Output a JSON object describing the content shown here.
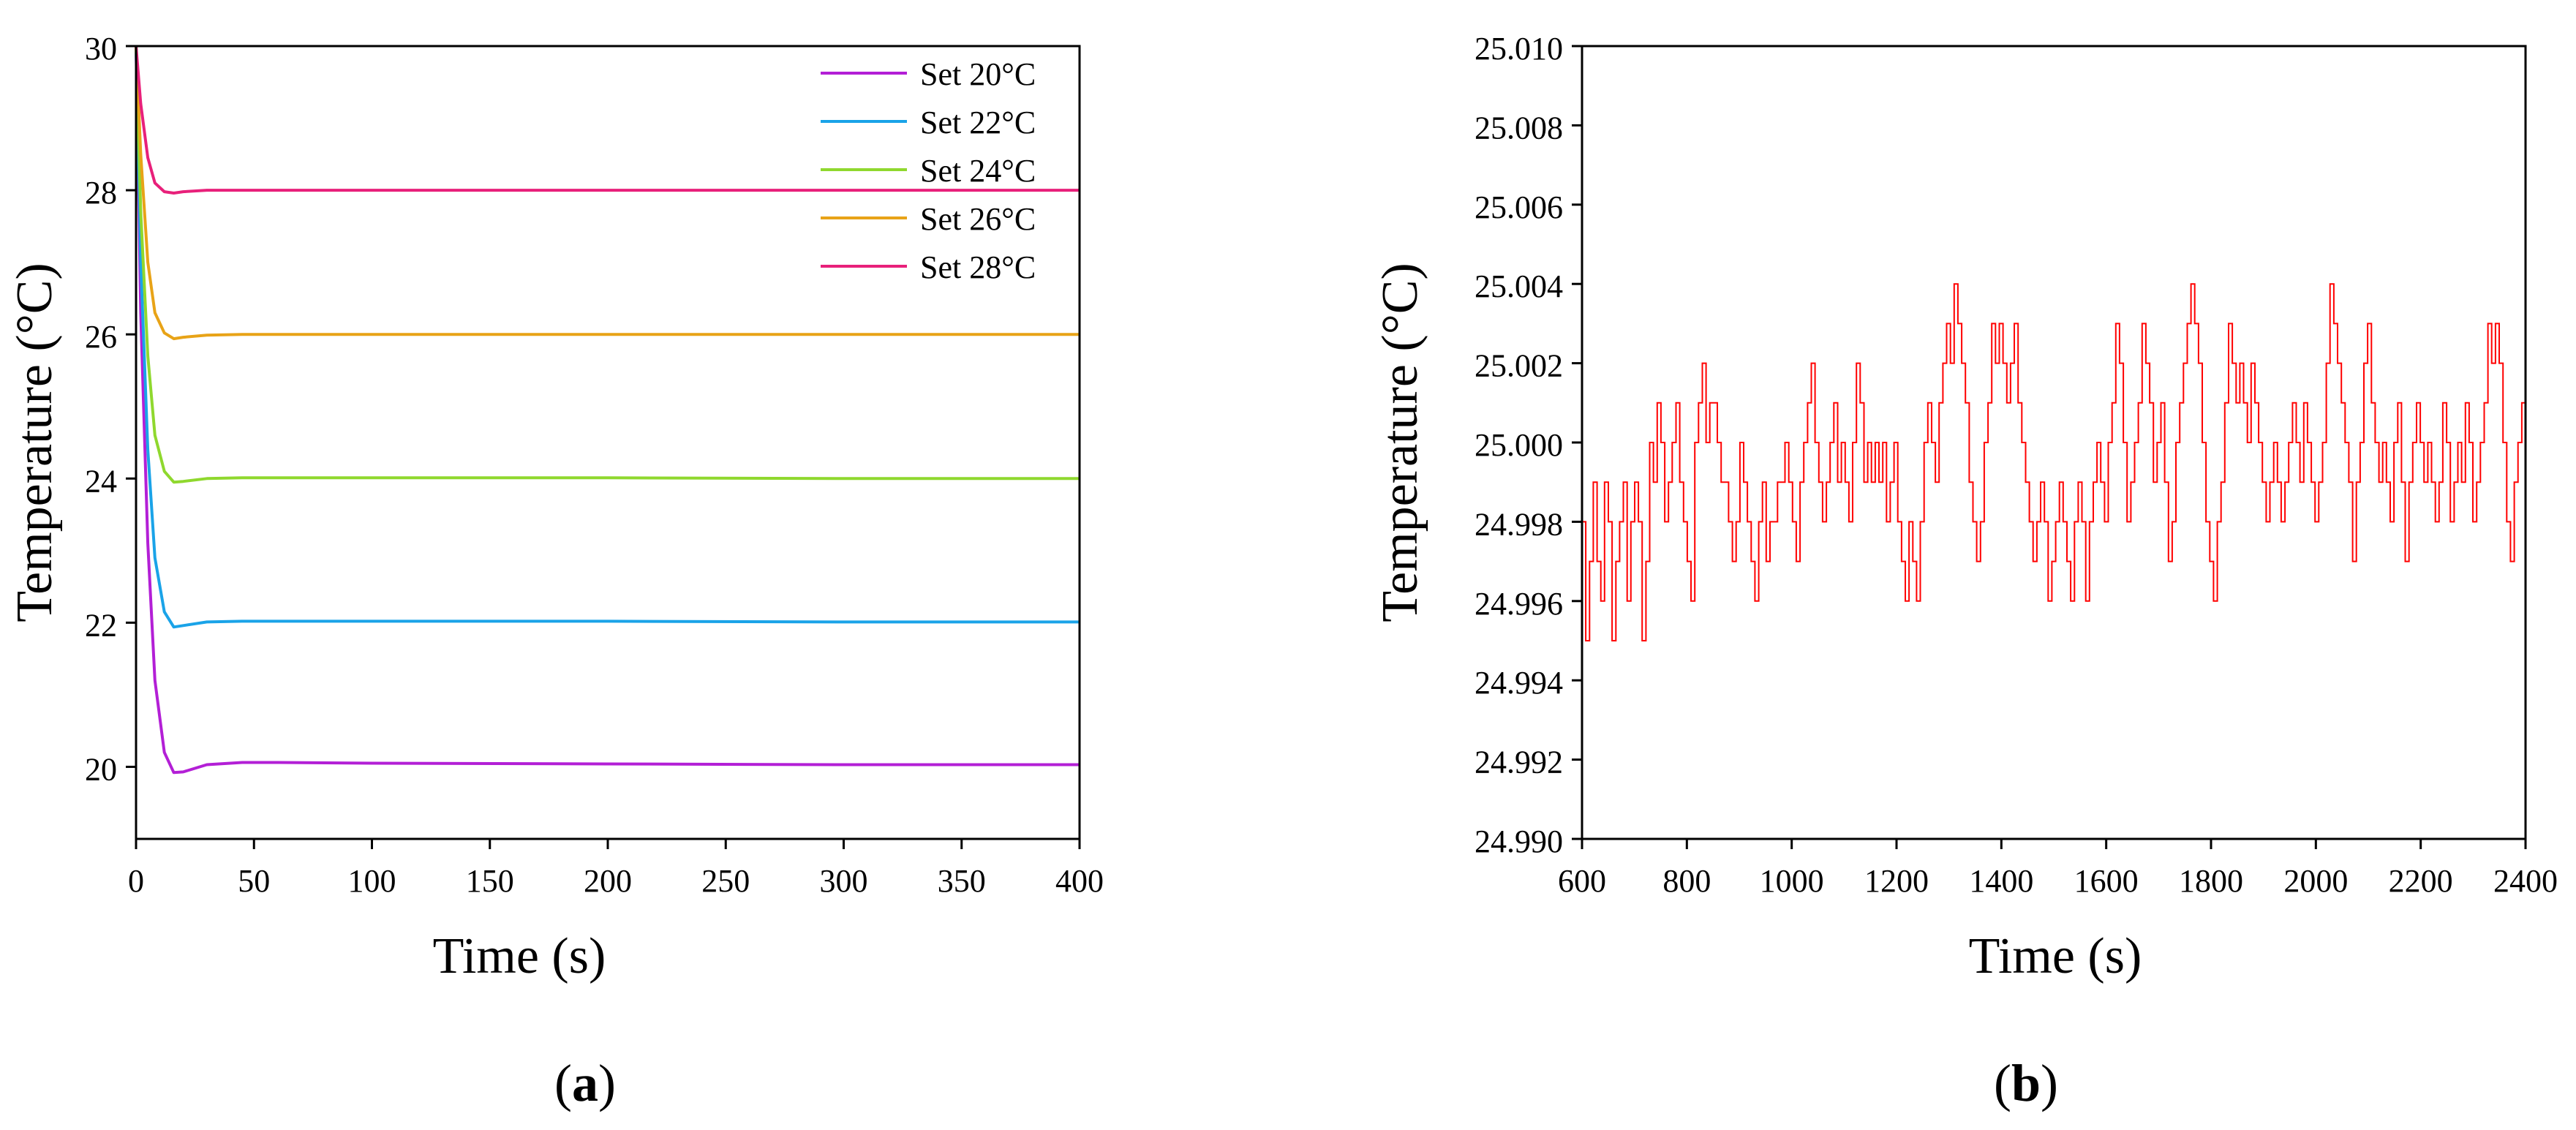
{
  "panels": [
    {
      "label_open": "(",
      "label_letter": "a",
      "label_close": ")"
    },
    {
      "label_open": "(",
      "label_letter": "b",
      "label_close": ")"
    }
  ],
  "chart_data": [
    {
      "type": "line",
      "title": "",
      "xlabel": "Time (s)",
      "ylabel": "Temperature (°C)",
      "xlim": [
        0,
        400
      ],
      "ylim": [
        19,
        30
      ],
      "x_ticks": [
        0,
        50,
        100,
        150,
        200,
        250,
        300,
        350,
        400
      ],
      "y_ticks": [
        20,
        22,
        24,
        26,
        28,
        30
      ],
      "grid": false,
      "legend_position": "top-right",
      "series": [
        {
          "name": "Set 20°C",
          "color": "#b31fd6",
          "start": 30,
          "setpoint": 20,
          "x": [
            0,
            2,
            5,
            8,
            12,
            16,
            20,
            30,
            45,
            60,
            100,
            200,
            300,
            400
          ],
          "y": [
            30,
            26.3,
            23.1,
            21.2,
            20.2,
            19.92,
            19.93,
            20.03,
            20.06,
            20.06,
            20.05,
            20.04,
            20.03,
            20.03
          ]
        },
        {
          "name": "Set 22°C",
          "color": "#1aa3e8",
          "start": 30,
          "setpoint": 22,
          "x": [
            0,
            2,
            5,
            8,
            12,
            16,
            20,
            30,
            45,
            60,
            100,
            200,
            300,
            400
          ],
          "y": [
            30,
            27.0,
            24.4,
            22.9,
            22.15,
            21.94,
            21.96,
            22.01,
            22.02,
            22.02,
            22.02,
            22.02,
            22.01,
            22.01
          ]
        },
        {
          "name": "Set 24°C",
          "color": "#8fd82e",
          "start": 30,
          "setpoint": 24,
          "x": [
            0,
            2,
            5,
            8,
            12,
            16,
            20,
            30,
            45,
            60,
            100,
            200,
            300,
            400
          ],
          "y": [
            30,
            27.7,
            25.7,
            24.6,
            24.1,
            23.95,
            23.96,
            24.0,
            24.01,
            24.01,
            24.01,
            24.01,
            24.0,
            24.0
          ]
        },
        {
          "name": "Set 26°C",
          "color": "#e8a317",
          "start": 30,
          "setpoint": 26,
          "x": [
            0,
            2,
            5,
            8,
            12,
            16,
            20,
            30,
            45,
            60,
            100,
            200,
            300,
            400
          ],
          "y": [
            30,
            28.5,
            27.0,
            26.3,
            26.02,
            25.94,
            25.96,
            25.99,
            26.0,
            26.0,
            26.0,
            26.0,
            26.0,
            26.0
          ]
        },
        {
          "name": "Set 28°C",
          "color": "#e8207a",
          "start": 30,
          "setpoint": 28,
          "x": [
            0,
            2,
            5,
            8,
            12,
            16,
            20,
            30,
            45,
            60,
            100,
            200,
            300,
            400
          ],
          "y": [
            30,
            29.2,
            28.45,
            28.1,
            27.98,
            27.96,
            27.98,
            28.0,
            28.0,
            28.0,
            28.0,
            28.0,
            28.0,
            28.0
          ]
        }
      ]
    },
    {
      "type": "line",
      "title": "",
      "xlabel": "Time (s)",
      "ylabel": "Temperature (°C)",
      "xlim": [
        600,
        2400
      ],
      "ylim": [
        24.99,
        25.01
      ],
      "x_ticks": [
        600,
        800,
        1000,
        1200,
        1400,
        1600,
        1800,
        2000,
        2200,
        2400
      ],
      "y_ticks": [
        "24.990",
        "24.992",
        "24.994",
        "24.996",
        "24.998",
        "25.000",
        "25.002",
        "25.004",
        "25.006",
        "25.008",
        "25.010"
      ],
      "grid": false,
      "series": [
        {
          "color": "#ff0000",
          "step": 5,
          "x_start": 600,
          "x_end": 2400,
          "y": [
            24.998,
            24.995,
            24.997,
            24.999,
            24.997,
            24.996,
            24.999,
            24.998,
            24.995,
            24.997,
            24.998,
            24.999,
            24.996,
            24.998,
            24.999,
            24.998,
            24.995,
            24.997,
            25.0,
            24.999,
            25.001,
            25.0,
            24.998,
            24.999,
            25.0,
            25.001,
            24.999,
            24.998,
            24.997,
            24.996,
            25.0,
            25.001,
            25.002,
            25.0,
            25.001,
            25.001,
            25.0,
            24.999,
            24.999,
            24.998,
            24.997,
            24.998,
            25.0,
            24.999,
            24.998,
            24.997,
            24.996,
            24.998,
            24.999,
            24.997,
            24.998,
            24.998,
            24.999,
            24.999,
            25.0,
            24.999,
            24.998,
            24.997,
            24.999,
            25.0,
            25.001,
            25.002,
            25.0,
            24.999,
            24.998,
            24.999,
            25.0,
            25.001,
            24.999,
            25.0,
            24.999,
            24.998,
            25.0,
            25.002,
            25.001,
            24.999,
            25.0,
            24.999,
            25.0,
            24.999,
            25.0,
            24.998,
            24.999,
            25.0,
            24.998,
            24.997,
            24.996,
            24.998,
            24.997,
            24.996,
            24.998,
            25.0,
            25.001,
            25.0,
            24.999,
            25.001,
            25.002,
            25.003,
            25.002,
            25.004,
            25.003,
            25.002,
            25.001,
            24.999,
            24.998,
            24.997,
            24.998,
            25.0,
            25.001,
            25.003,
            25.002,
            25.003,
            25.002,
            25.001,
            25.002,
            25.003,
            25.001,
            25.0,
            24.999,
            24.998,
            24.997,
            24.998,
            24.999,
            24.998,
            24.996,
            24.997,
            24.998,
            24.999,
            24.998,
            24.997,
            24.996,
            24.998,
            24.999,
            24.998,
            24.996,
            24.998,
            24.999,
            25.0,
            24.999,
            24.998,
            25.0,
            25.001,
            25.003,
            25.002,
            25.0,
            24.998,
            24.999,
            25.0,
            25.001,
            25.003,
            25.002,
            25.001,
            24.999,
            25.0,
            25.001,
            24.999,
            24.997,
            24.998,
            25.0,
            25.001,
            25.002,
            25.003,
            25.004,
            25.003,
            25.002,
            25.0,
            24.998,
            24.997,
            24.996,
            24.998,
            24.999,
            25.001,
            25.003,
            25.002,
            25.001,
            25.002,
            25.001,
            25.0,
            25.002,
            25.001,
            25.0,
            24.999,
            24.998,
            24.999,
            25.0,
            24.999,
            24.998,
            24.999,
            25.0,
            25.001,
            25.0,
            24.999,
            25.001,
            25.0,
            24.999,
            24.998,
            24.999,
            25.0,
            25.002,
            25.004,
            25.003,
            25.002,
            25.001,
            25.0,
            24.999,
            24.997,
            24.999,
            25.0,
            25.002,
            25.003,
            25.001,
            25.0,
            24.999,
            25.0,
            24.999,
            24.998,
            25.0,
            25.001,
            24.999,
            24.997,
            24.999,
            25.0,
            25.001,
            25.0,
            24.999,
            25.0,
            24.999,
            24.998,
            24.999,
            25.001,
            25.0,
            24.998,
            24.999,
            25.0,
            24.999,
            25.001,
            25.0,
            24.998,
            24.999,
            25.0,
            25.001,
            25.003,
            25.002,
            25.003,
            25.002,
            25.0,
            24.998,
            24.997,
            24.999,
            25.0,
            25.001
          ]
        }
      ]
    }
  ]
}
